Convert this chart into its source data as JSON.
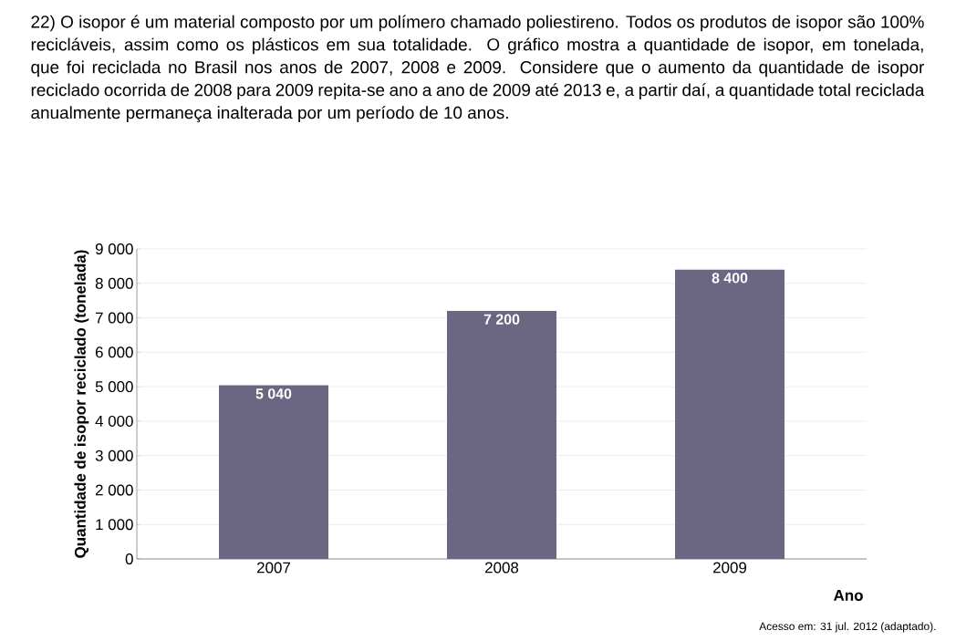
{
  "chart_data": {
    "type": "bar",
    "title": "22) O isopor é um material composto por um polímero chamado poliestireno. Todos os produtos de isopor são 100% recicláveis, assim como os plásticos em sua totalidade. O gráfico mostra a quantidade de isopor, em tonelada, que foi reciclada no Brasil nos anos de 2007, 2008 e 2009. Considere que o aumento da quantidade de isopor reciclado ocorrida de 2008 para 2009 repita-se ano a ano de 2009 até 2013 e, a partir daí, a quantidade total reciclada anualmente permaneça inalterada por um período de 10 anos.",
    "xlabel": "Ano",
    "ylabel": "Quantidade de isopor reciclado (tonelada)",
    "categories": [
      "2007",
      "2008",
      "2009"
    ],
    "values": [
      5040,
      7200,
      8400
    ],
    "value_labels": [
      "5 040",
      "7 200",
      "8 400"
    ],
    "color": "#6b6783",
    "ylim": [
      0,
      9000
    ],
    "yticks": [
      {
        "value": 0,
        "label": "0"
      },
      {
        "value": 1000,
        "label": "1 000"
      },
      {
        "value": 2000,
        "label": "2 000"
      },
      {
        "value": 3000,
        "label": "3 000"
      },
      {
        "value": 4000,
        "label": "4 000"
      },
      {
        "value": 5000,
        "label": "5 000"
      },
      {
        "value": 6000,
        "label": "6 000"
      },
      {
        "value": 7000,
        "label": "7 000"
      },
      {
        "value": 8000,
        "label": "8 000"
      },
      {
        "value": 9000,
        "label": "9 000"
      }
    ],
    "grid": "y",
    "annotations": [
      "Acesso em: 31 jul. 2012 (adaptado)."
    ]
  }
}
